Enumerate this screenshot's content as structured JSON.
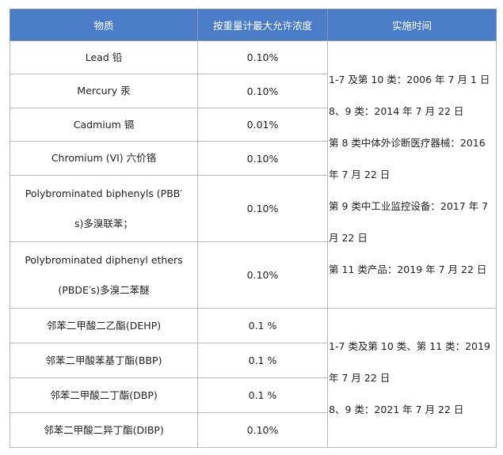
{
  "table": {
    "headers": [
      "物质",
      "按重量计最大允许浓度",
      "实施时间"
    ],
    "rows": [
      {
        "substance": "Lead  铅",
        "limit": "0.10%"
      },
      {
        "substance": "Mercury  汞",
        "limit": "0.10%"
      },
      {
        "substance": "Cadmium  镉",
        "limit": "0.01%"
      },
      {
        "substance": "Chromium (VI)  六价铬",
        "limit": "0.10%"
      },
      {
        "substance_lines": [
          "Polybrominated biphenyls (PBB′",
          "s)多溴联苯；"
        ],
        "limit": "0.10%"
      },
      {
        "substance_lines": [
          "Polybrominated diphenyl ethers",
          "(PBDE′s)多溴二苯醚"
        ],
        "limit": "0.10%"
      },
      {
        "substance": "邻苯二甲酸二乙酯(DEHP)",
        "limit": "0.1 %"
      },
      {
        "substance": "邻苯二甲酸苯基丁酯(BBP)",
        "limit": "0.1 %"
      },
      {
        "substance": "邻苯二甲酸二丁酯(DBP)",
        "limit": "0.1 %"
      },
      {
        "substance": "邻苯二甲酸二异丁酯(DIBP)",
        "limit": "0.10%"
      }
    ],
    "time_group_1": [
      "1-7 及第 10 类：2006 年 7 月 1 日",
      "8、9 类：2014 年 7 月 22 日",
      "第 8 类中体外诊断医疗器械：2016",
      "年 7 月 22 日",
      "第 9 类中工业监控设备：2017 年 7",
      "月 22 日",
      "第 11 类产品：2019 年 7 月 22 日"
    ],
    "time_group_2": [
      "1-7 类及第 10 类、第 11 类：2019",
      "年 7 月 22 日",
      "8、9 类：2021 年 7 月 22 日"
    ]
  }
}
